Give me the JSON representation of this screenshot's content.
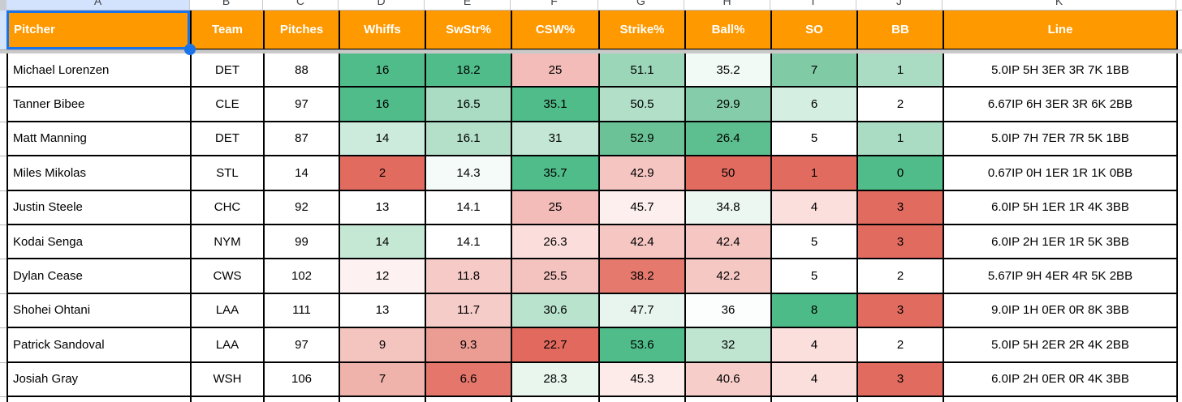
{
  "sheet": {
    "column_letters": [
      "A",
      "B",
      "C",
      "D",
      "E",
      "F",
      "G",
      "H",
      "I",
      "J",
      "K"
    ],
    "selected_cell": "A1",
    "colors": {
      "header_bg": "#ff9900",
      "header_text": "#ffffff",
      "selection_blue": "#1a73e8",
      "scale_green_max": "#4fbc8a",
      "scale_red_min": "#e26b60",
      "grid_border": "#000000"
    }
  },
  "table": {
    "headers": [
      "Pitcher",
      "Team",
      "Pitches",
      "Whiffs",
      "SwStr%",
      "CSW%",
      "Strike%",
      "Ball%",
      "SO",
      "BB",
      "Line"
    ],
    "rows": [
      {
        "cells": [
          {
            "v": "Michael Lorenzen"
          },
          {
            "v": "DET"
          },
          {
            "v": "88"
          },
          {
            "v": "16",
            "bg": "#4fbc8a"
          },
          {
            "v": "18.2",
            "bg": "#4fbc8a"
          },
          {
            "v": "25",
            "bg": "#f3bcb9"
          },
          {
            "v": "51.1",
            "bg": "#9cd6b9"
          },
          {
            "v": "35.2",
            "bg": "#f2faf6"
          },
          {
            "v": "7",
            "bg": "#80caa5"
          },
          {
            "v": "1",
            "bg": "#a9dcc3"
          },
          {
            "v": "5.0IP 5H 3ER 3R 7K 1BB"
          }
        ]
      },
      {
        "cells": [
          {
            "v": "Tanner Bibee"
          },
          {
            "v": "CLE"
          },
          {
            "v": "97"
          },
          {
            "v": "16",
            "bg": "#4fbc8a"
          },
          {
            "v": "16.5",
            "bg": "#a9dcc3"
          },
          {
            "v": "35.1",
            "bg": "#4fbc8a"
          },
          {
            "v": "50.5",
            "bg": "#b1dfc8"
          },
          {
            "v": "29.9",
            "bg": "#85cdaa"
          },
          {
            "v": "6",
            "bg": "#d4eee2"
          },
          {
            "v": "2"
          },
          {
            "v": "6.67IP 6H 3ER 3R 6K 2BB"
          }
        ]
      },
      {
        "cells": [
          {
            "v": "Matt Manning"
          },
          {
            "v": "DET"
          },
          {
            "v": "87"
          },
          {
            "v": "14",
            "bg": "#cdebdc"
          },
          {
            "v": "16.1",
            "bg": "#b4e0ca"
          },
          {
            "v": "31",
            "bg": "#c3e7d4"
          },
          {
            "v": "52.9",
            "bg": "#6ac296"
          },
          {
            "v": "26.4",
            "bg": "#5dbf90"
          },
          {
            "v": "5"
          },
          {
            "v": "1",
            "bg": "#a9dcc3"
          },
          {
            "v": "5.0IP 7H 7ER 7R 5K 1BB"
          }
        ]
      },
      {
        "cells": [
          {
            "v": "Miles Mikolas"
          },
          {
            "v": "STL"
          },
          {
            "v": "14"
          },
          {
            "v": "2",
            "bg": "#e26b60"
          },
          {
            "v": "14.3",
            "bg": "#f5fbf8"
          },
          {
            "v": "35.7",
            "bg": "#4fbc8a"
          },
          {
            "v": "42.9",
            "bg": "#f5c5c1"
          },
          {
            "v": "50",
            "bg": "#e26b60"
          },
          {
            "v": "1",
            "bg": "#e26b60"
          },
          {
            "v": "0",
            "bg": "#4fbc8a"
          },
          {
            "v": "0.67IP 0H 1ER 1R 1K 0BB"
          }
        ]
      },
      {
        "cells": [
          {
            "v": "Justin Steele"
          },
          {
            "v": "CHC"
          },
          {
            "v": "92"
          },
          {
            "v": "13"
          },
          {
            "v": "14.1"
          },
          {
            "v": "25",
            "bg": "#f3bcb9"
          },
          {
            "v": "45.7",
            "bg": "#fcefed"
          },
          {
            "v": "34.8",
            "bg": "#edf7f2"
          },
          {
            "v": "4",
            "bg": "#fadfdc"
          },
          {
            "v": "3",
            "bg": "#e26b60"
          },
          {
            "v": "6.0IP 5H 1ER 1R 4K 3BB"
          }
        ]
      },
      {
        "cells": [
          {
            "v": "Kodai Senga"
          },
          {
            "v": "NYM"
          },
          {
            "v": "99"
          },
          {
            "v": "14",
            "bg": "#c5e8d5"
          },
          {
            "v": "14.1"
          },
          {
            "v": "26.3",
            "bg": "#fbdedc"
          },
          {
            "v": "42.4",
            "bg": "#f5c6c2"
          },
          {
            "v": "42.4",
            "bg": "#f5c6c2"
          },
          {
            "v": "5"
          },
          {
            "v": "3",
            "bg": "#e26b60"
          },
          {
            "v": "6.0IP 2H 1ER 1R 5K 3BB"
          }
        ]
      },
      {
        "cells": [
          {
            "v": "Dylan Cease"
          },
          {
            "v": "CWS"
          },
          {
            "v": "102"
          },
          {
            "v": "12",
            "bg": "#fdf2f1"
          },
          {
            "v": "11.8",
            "bg": "#f6cac6"
          },
          {
            "v": "25.5",
            "bg": "#f5c3bf"
          },
          {
            "v": "38.2",
            "bg": "#e6796d"
          },
          {
            "v": "42.2",
            "bg": "#f6c8c4"
          },
          {
            "v": "5"
          },
          {
            "v": "2"
          },
          {
            "v": "5.67IP 9H 4ER 4R 5K 2BB"
          }
        ]
      },
      {
        "cells": [
          {
            "v": "Shohei Ohtani"
          },
          {
            "v": "LAA"
          },
          {
            "v": "111"
          },
          {
            "v": "13"
          },
          {
            "v": "11.7",
            "bg": "#f6ccc8"
          },
          {
            "v": "30.6",
            "bg": "#b9e3cd"
          },
          {
            "v": "47.7",
            "bg": "#e7f5ee"
          },
          {
            "v": "36",
            "bg": "#fcfefd"
          },
          {
            "v": "8",
            "bg": "#4dbb87"
          },
          {
            "v": "3",
            "bg": "#e26b60"
          },
          {
            "v": "9.0IP 1H 0ER 0R 8K 3BB"
          }
        ]
      },
      {
        "cells": [
          {
            "v": "Patrick Sandoval"
          },
          {
            "v": "LAA"
          },
          {
            "v": "97"
          },
          {
            "v": "9",
            "bg": "#f4c4bf"
          },
          {
            "v": "9.3",
            "bg": "#eb9c93"
          },
          {
            "v": "22.7",
            "bg": "#e2695e"
          },
          {
            "v": "53.6",
            "bg": "#4fbc8a"
          },
          {
            "v": "32",
            "bg": "#bfe5d1"
          },
          {
            "v": "4",
            "bg": "#fadfdd"
          },
          {
            "v": "2"
          },
          {
            "v": "5.0IP 5H 2ER 2R 4K 2BB"
          }
        ]
      },
      {
        "cells": [
          {
            "v": "Josiah Gray"
          },
          {
            "v": "WSH"
          },
          {
            "v": "106"
          },
          {
            "v": "7",
            "bg": "#f0b3ac"
          },
          {
            "v": "6.6",
            "bg": "#e4766b"
          },
          {
            "v": "28.3",
            "bg": "#e8f6ee"
          },
          {
            "v": "45.3",
            "bg": "#fcebe9"
          },
          {
            "v": "40.6",
            "bg": "#f7cdc9"
          },
          {
            "v": "4",
            "bg": "#fadfdd"
          },
          {
            "v": "3",
            "bg": "#e26b60"
          },
          {
            "v": "6.0IP 2H 0ER 0R 4K 3BB"
          }
        ]
      }
    ]
  }
}
